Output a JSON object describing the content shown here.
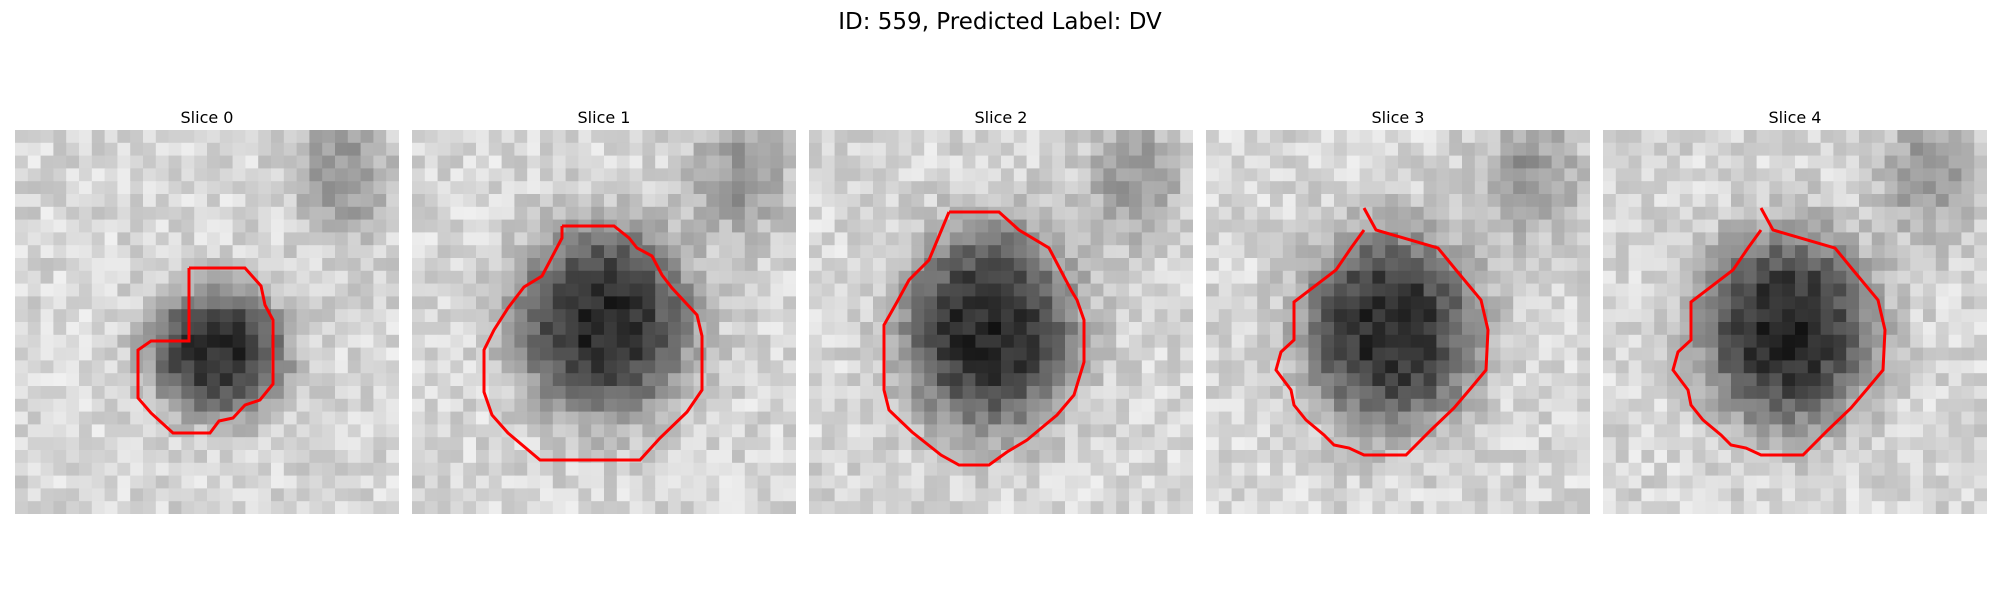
{
  "figure": {
    "title": "ID: 559, Predicted Label: DV"
  },
  "panels": [
    {
      "title": "Slice 0",
      "seed": 11,
      "blob_center": [
        0.53,
        0.58
      ],
      "blob_radius": [
        0.18,
        0.17
      ],
      "contour_color": "#ff0000"
    },
    {
      "title": "Slice 1",
      "seed": 23,
      "blob_center": [
        0.5,
        0.5
      ],
      "blob_radius": [
        0.23,
        0.25
      ],
      "contour_color": "#ff0000"
    },
    {
      "title": "Slice 2",
      "seed": 37,
      "blob_center": [
        0.47,
        0.52
      ],
      "blob_radius": [
        0.23,
        0.27
      ],
      "contour_color": "#ff0000"
    },
    {
      "title": "Slice 3",
      "seed": 41,
      "blob_center": [
        0.48,
        0.52
      ],
      "blob_radius": [
        0.23,
        0.26
      ],
      "contour_color": "#ff0000"
    },
    {
      "title": "Slice 4",
      "seed": 53,
      "blob_center": [
        0.48,
        0.52
      ],
      "blob_radius": [
        0.23,
        0.26
      ],
      "contour_color": "#ff0000"
    }
  ]
}
